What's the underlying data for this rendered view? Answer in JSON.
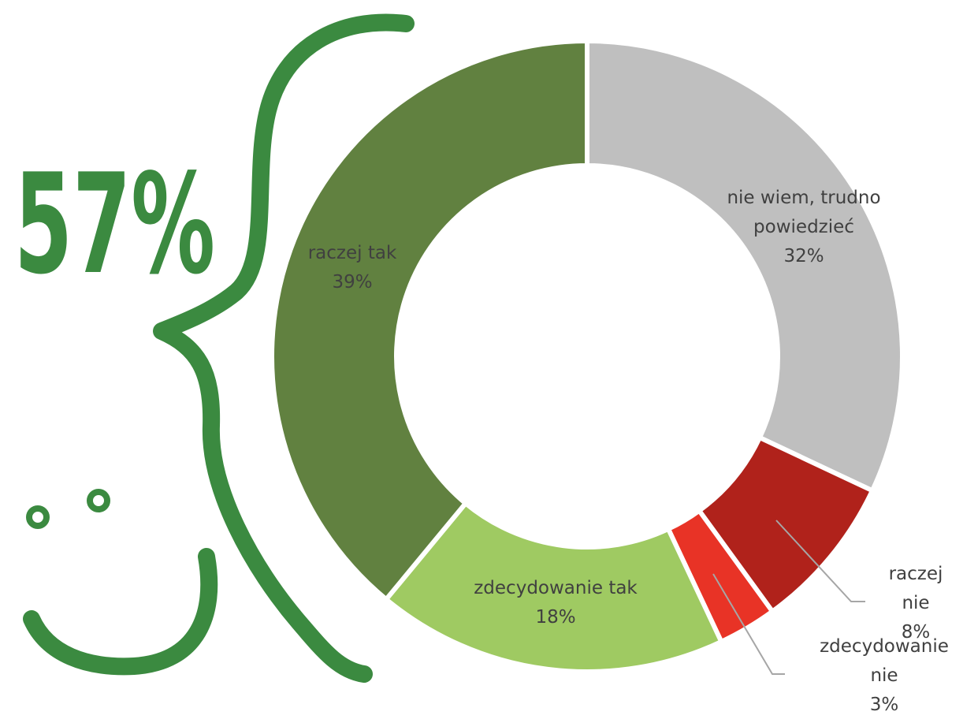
{
  "chart_data": {
    "type": "donut",
    "categories": [
      "nie wiem, trudno powiedzieć",
      "raczej nie",
      "zdecydowanie nie",
      "zdecydowanie tak",
      "raczej tak"
    ],
    "values": [
      32,
      8,
      3,
      18,
      39
    ],
    "value_labels": [
      "32%",
      "8%",
      "3%",
      "18%",
      "39%"
    ],
    "colors": [
      "#bfbfbf",
      "#b0221b",
      "#e83326",
      "#9fca62",
      "#618140"
    ],
    "annotation": "57%"
  }
}
